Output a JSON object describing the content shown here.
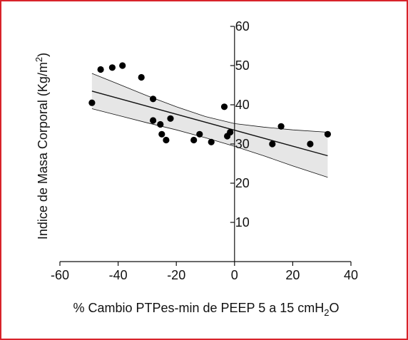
{
  "chart_data": {
    "type": "scatter",
    "title": "",
    "xlabel": "% Cambio PTPes-min de PEEP 5 a 15 cmH₂O",
    "xlabel_parts": {
      "main": "% Cambio PTPes-min de PEEP 5 a 15 cmH",
      "sub": "2",
      "tail": "O"
    },
    "ylabel": "Indice de Masa Corporal (Kg/m²)",
    "ylabel_parts": {
      "main": "Indice de Masa Corporal (Kg/m",
      "sup": "2",
      "tail": ")"
    },
    "xlim": [
      -60,
      40
    ],
    "ylim": [
      0,
      60
    ],
    "xticks": [
      -60,
      -40,
      -20,
      0,
      20,
      40
    ],
    "yticks": [
      10,
      20,
      30,
      40,
      50,
      60
    ],
    "grid": false,
    "legend": "none",
    "point_color": "#000000",
    "band_color": "#e6e6e6",
    "regression": {
      "x": [
        -49,
        32
      ],
      "y": [
        43.5,
        27
      ]
    },
    "ci_upper": {
      "x": [
        -49,
        -40,
        -30,
        -20,
        -10,
        0,
        10,
        20,
        32
      ],
      "y": [
        48,
        45.3,
        42.3,
        39.5,
        37.0,
        35.2,
        34.3,
        33.6,
        33
      ]
    },
    "ci_lower": {
      "x": [
        -49,
        -40,
        -30,
        -20,
        -10,
        0,
        10,
        20,
        32
      ],
      "y": [
        39,
        37.3,
        35.4,
        33.6,
        31.6,
        29.4,
        27.0,
        24.4,
        21.5
      ]
    },
    "points": [
      {
        "x": -49,
        "y": 40.5
      },
      {
        "x": -46,
        "y": 49.0
      },
      {
        "x": -42,
        "y": 49.5
      },
      {
        "x": -38.5,
        "y": 50.0
      },
      {
        "x": -32,
        "y": 47.0
      },
      {
        "x": -28,
        "y": 41.5
      },
      {
        "x": -28,
        "y": 36.0
      },
      {
        "x": -25.5,
        "y": 35.0
      },
      {
        "x": -25,
        "y": 32.5
      },
      {
        "x": -23.5,
        "y": 31.0
      },
      {
        "x": -22,
        "y": 36.5
      },
      {
        "x": -14,
        "y": 31.0
      },
      {
        "x": -12,
        "y": 32.5
      },
      {
        "x": -8,
        "y": 30.5
      },
      {
        "x": -3.5,
        "y": 39.5
      },
      {
        "x": -2.5,
        "y": 32.0
      },
      {
        "x": -1.5,
        "y": 33.0
      },
      {
        "x": 13,
        "y": 30.0
      },
      {
        "x": 16,
        "y": 34.5
      },
      {
        "x": 26,
        "y": 30.0
      },
      {
        "x": 32,
        "y": 32.5
      }
    ]
  }
}
